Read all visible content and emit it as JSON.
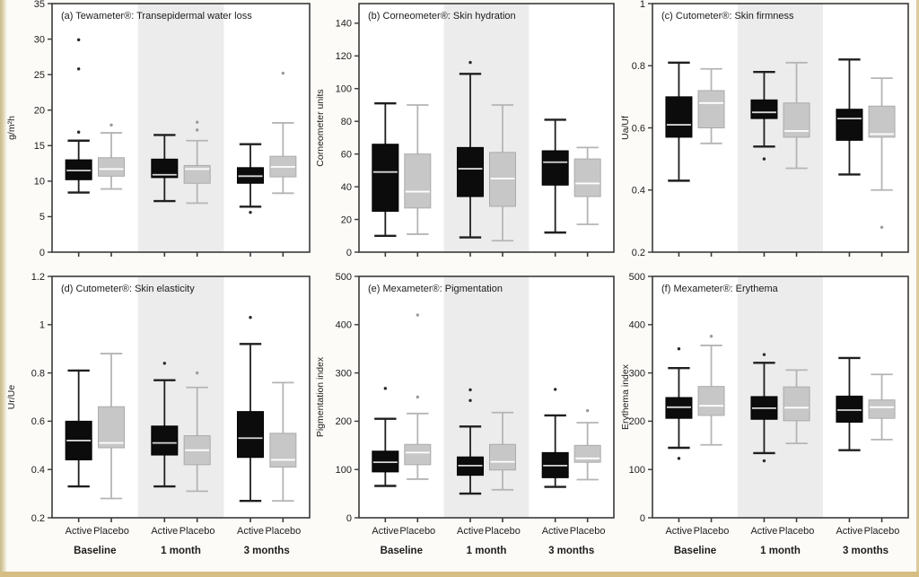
{
  "figure": {
    "type": "boxplot-grid",
    "description": "Six-panel box plot figure comparing Active vs Placebo skin measurements at three timepoints",
    "arms": [
      "Active",
      "Placebo"
    ],
    "timepoints": [
      "Baseline",
      "1 month",
      "3 months"
    ],
    "colors": {
      "active_box": "#0c0c0c",
      "active_edge": "#000000",
      "active_whisker": "#1f1f1f",
      "active_median": "#d6d6d6",
      "placebo_box": "#c7c7c7",
      "placebo_edge": "#ababab",
      "placebo_whisker": "#b5b5b5",
      "placebo_median": "#ffffff",
      "shaded_band": "#ececec",
      "frame": "#3a3a3a",
      "text": "#1c1c1c",
      "group_label": "#111111",
      "page_edge_tan": "#d5bd84",
      "panel_background": "#ffffff"
    }
  },
  "chart_data": [
    {
      "type": "box",
      "title": "(a) Tewameter®: Transepidermal water loss",
      "ylabel": "g/m²h",
      "ylim": [
        0,
        35
      ],
      "yticks": [
        0,
        5,
        10,
        15,
        20,
        25,
        30,
        35
      ],
      "ytick_labels": [
        "0",
        "5",
        "10",
        "15",
        "20",
        "25",
        "30",
        "35"
      ],
      "categories": [
        "Baseline",
        "1 month",
        "3 months"
      ],
      "shaded_timepoint": "1 month",
      "series": [
        {
          "name": "Active",
          "boxes": [
            {
              "whisker_low": 8.4,
              "q1": 10.2,
              "median": 11.5,
              "q3": 13.0,
              "whisker_high": 15.7,
              "outliers": [
                16.9,
                25.8,
                29.9
              ]
            },
            {
              "whisker_low": 7.2,
              "q1": 10.5,
              "median": 10.9,
              "q3": 13.1,
              "whisker_high": 16.5,
              "outliers": []
            },
            {
              "whisker_low": 6.4,
              "q1": 9.7,
              "median": 10.7,
              "q3": 11.9,
              "whisker_high": 15.2,
              "outliers": [
                5.6
              ]
            }
          ]
        },
        {
          "name": "Placebo",
          "boxes": [
            {
              "whisker_low": 8.9,
              "q1": 10.7,
              "median": 11.7,
              "q3": 13.3,
              "whisker_high": 16.8,
              "outliers": [
                17.9
              ]
            },
            {
              "whisker_low": 6.9,
              "q1": 9.7,
              "median": 11.7,
              "q3": 12.2,
              "whisker_high": 15.7,
              "outliers": [
                17.2,
                18.3
              ]
            },
            {
              "whisker_low": 8.3,
              "q1": 10.6,
              "median": 12.0,
              "q3": 13.5,
              "whisker_high": 18.2,
              "outliers": [
                25.2
              ]
            }
          ]
        }
      ]
    },
    {
      "type": "box",
      "title": "(b) Corneometer®: Skin hydration",
      "ylabel": "Corneometer units",
      "ylim": [
        0,
        152
      ],
      "yticks": [
        0,
        20,
        40,
        60,
        80,
        100,
        120,
        140
      ],
      "ytick_labels": [
        "0",
        "20",
        "40",
        "60",
        "80",
        "100",
        "120",
        "140"
      ],
      "categories": [
        "Baseline",
        "1 month",
        "3 months"
      ],
      "shaded_timepoint": "1 month",
      "series": [
        {
          "name": "Active",
          "boxes": [
            {
              "whisker_low": 10,
              "q1": 25,
              "median": 49,
              "q3": 66,
              "whisker_high": 91,
              "outliers": []
            },
            {
              "whisker_low": 9,
              "q1": 34,
              "median": 51,
              "q3": 64,
              "whisker_high": 109,
              "outliers": [
                116
              ]
            },
            {
              "whisker_low": 12,
              "q1": 41,
              "median": 55,
              "q3": 62,
              "whisker_high": 81,
              "outliers": []
            }
          ]
        },
        {
          "name": "Placebo",
          "boxes": [
            {
              "whisker_low": 11,
              "q1": 27,
              "median": 37,
              "q3": 60,
              "whisker_high": 90,
              "outliers": []
            },
            {
              "whisker_low": 7,
              "q1": 28,
              "median": 45,
              "q3": 61,
              "whisker_high": 90,
              "outliers": []
            },
            {
              "whisker_low": 17,
              "q1": 34,
              "median": 42,
              "q3": 57,
              "whisker_high": 64,
              "outliers": []
            }
          ]
        }
      ]
    },
    {
      "type": "box",
      "title": "(c) Cutometer®: Skin firmness",
      "ylabel": "Ua/Uf",
      "ylim": [
        0.2,
        1.0
      ],
      "yticks": [
        0.2,
        0.4,
        0.6,
        0.8,
        1.0
      ],
      "ytick_labels": [
        "0.2",
        "0.4",
        "0.6",
        "0.8",
        "1"
      ],
      "categories": [
        "Baseline",
        "1 month",
        "3 months"
      ],
      "shaded_timepoint": "1 month",
      "series": [
        {
          "name": "Active",
          "boxes": [
            {
              "whisker_low": 0.43,
              "q1": 0.57,
              "median": 0.61,
              "q3": 0.7,
              "whisker_high": 0.81,
              "outliers": []
            },
            {
              "whisker_low": 0.54,
              "q1": 0.63,
              "median": 0.65,
              "q3": 0.69,
              "whisker_high": 0.78,
              "outliers": [
                0.5
              ]
            },
            {
              "whisker_low": 0.45,
              "q1": 0.56,
              "median": 0.63,
              "q3": 0.66,
              "whisker_high": 0.82,
              "outliers": []
            }
          ]
        },
        {
          "name": "Placebo",
          "boxes": [
            {
              "whisker_low": 0.55,
              "q1": 0.6,
              "median": 0.68,
              "q3": 0.72,
              "whisker_high": 0.79,
              "outliers": []
            },
            {
              "whisker_low": 0.47,
              "q1": 0.57,
              "median": 0.59,
              "q3": 0.68,
              "whisker_high": 0.81,
              "outliers": []
            },
            {
              "whisker_low": 0.4,
              "q1": 0.57,
              "median": 0.58,
              "q3": 0.67,
              "whisker_high": 0.76,
              "outliers": [
                0.28
              ]
            }
          ]
        }
      ]
    },
    {
      "type": "box",
      "title": "(d) Cutometer®: Skin elasticity",
      "ylabel": "Ur/Ue",
      "ylim": [
        0.2,
        1.2
      ],
      "yticks": [
        0.2,
        0.4,
        0.6,
        0.8,
        1.0,
        1.2
      ],
      "ytick_labels": [
        "0.2",
        "0.4",
        "0.6",
        "0.8",
        "1",
        "1.2"
      ],
      "categories": [
        "Baseline",
        "1 month",
        "3 months"
      ],
      "shaded_timepoint": "1 month",
      "series": [
        {
          "name": "Active",
          "boxes": [
            {
              "whisker_low": 0.33,
              "q1": 0.44,
              "median": 0.52,
              "q3": 0.6,
              "whisker_high": 0.81,
              "outliers": []
            },
            {
              "whisker_low": 0.33,
              "q1": 0.46,
              "median": 0.51,
              "q3": 0.58,
              "whisker_high": 0.77,
              "outliers": [
                0.84
              ]
            },
            {
              "whisker_low": 0.27,
              "q1": 0.45,
              "median": 0.53,
              "q3": 0.64,
              "whisker_high": 0.92,
              "outliers": [
                1.03
              ]
            }
          ]
        },
        {
          "name": "Placebo",
          "boxes": [
            {
              "whisker_low": 0.28,
              "q1": 0.49,
              "median": 0.51,
              "q3": 0.66,
              "whisker_high": 0.88,
              "outliers": []
            },
            {
              "whisker_low": 0.31,
              "q1": 0.42,
              "median": 0.48,
              "q3": 0.54,
              "whisker_high": 0.74,
              "outliers": [
                0.8
              ]
            },
            {
              "whisker_low": 0.27,
              "q1": 0.41,
              "median": 0.44,
              "q3": 0.55,
              "whisker_high": 0.76,
              "outliers": []
            }
          ]
        }
      ]
    },
    {
      "type": "box",
      "title": "(e) Mexameter®: Pigmentation",
      "ylabel": "Pigmentation index",
      "ylim": [
        0,
        500
      ],
      "yticks": [
        0,
        100,
        200,
        300,
        400,
        500
      ],
      "ytick_labels": [
        "0",
        "100",
        "200",
        "300",
        "400",
        "500"
      ],
      "categories": [
        "Baseline",
        "1 month",
        "3 months"
      ],
      "shaded_timepoint": "1 month",
      "series": [
        {
          "name": "Active",
          "boxes": [
            {
              "whisker_low": 66,
              "q1": 95,
              "median": 115,
              "q3": 138,
              "whisker_high": 205,
              "outliers": [
                268
              ]
            },
            {
              "whisker_low": 50,
              "q1": 88,
              "median": 108,
              "q3": 126,
              "whisker_high": 189,
              "outliers": [
                243,
                265
              ]
            },
            {
              "whisker_low": 64,
              "q1": 83,
              "median": 108,
              "q3": 135,
              "whisker_high": 212,
              "outliers": [
                266
              ]
            }
          ]
        },
        {
          "name": "Placebo",
          "boxes": [
            {
              "whisker_low": 80,
              "q1": 110,
              "median": 135,
              "q3": 152,
              "whisker_high": 216,
              "outliers": [
                250,
                420
              ]
            },
            {
              "whisker_low": 58,
              "q1": 99,
              "median": 116,
              "q3": 152,
              "whisker_high": 218,
              "outliers": []
            },
            {
              "whisker_low": 79,
              "q1": 115,
              "median": 123,
              "q3": 150,
              "whisker_high": 197,
              "outliers": [
                222
              ]
            }
          ]
        }
      ]
    },
    {
      "type": "box",
      "title": "(f) Mexameter®: Erythema",
      "ylabel": "Erythema index",
      "ylim": [
        0,
        500
      ],
      "yticks": [
        0,
        100,
        200,
        300,
        400,
        500
      ],
      "ytick_labels": [
        "0",
        "100",
        "200",
        "300",
        "400",
        "500"
      ],
      "categories": [
        "Baseline",
        "1 month",
        "3 months"
      ],
      "shaded_timepoint": "1 month",
      "series": [
        {
          "name": "Active",
          "boxes": [
            {
              "whisker_low": 145,
              "q1": 206,
              "median": 229,
              "q3": 249,
              "whisker_high": 310,
              "outliers": [
                123,
                350
              ]
            },
            {
              "whisker_low": 134,
              "q1": 204,
              "median": 227,
              "q3": 251,
              "whisker_high": 321,
              "outliers": [
                118,
                338
              ]
            },
            {
              "whisker_low": 140,
              "q1": 198,
              "median": 223,
              "q3": 252,
              "whisker_high": 331,
              "outliers": []
            }
          ]
        },
        {
          "name": "Placebo",
          "boxes": [
            {
              "whisker_low": 151,
              "q1": 212,
              "median": 232,
              "q3": 272,
              "whisker_high": 357,
              "outliers": [
                376
              ]
            },
            {
              "whisker_low": 154,
              "q1": 201,
              "median": 228,
              "q3": 271,
              "whisker_high": 306,
              "outliers": []
            },
            {
              "whisker_low": 162,
              "q1": 206,
              "median": 229,
              "q3": 244,
              "whisker_high": 297,
              "outliers": []
            }
          ]
        }
      ]
    }
  ]
}
